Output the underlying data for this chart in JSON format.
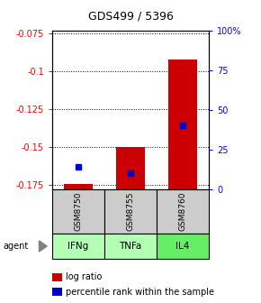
{
  "title": "GDS499 / 5396",
  "categories": [
    "IFNg",
    "TNFa",
    "IL4"
  ],
  "gsm_labels": [
    "GSM8750",
    "GSM8755",
    "GSM8760"
  ],
  "log_ratios": [
    -0.1745,
    -0.15,
    -0.092
  ],
  "log_ratio_base": -0.178,
  "percentile_ranks": [
    14,
    10,
    40
  ],
  "ylim_left": [
    -0.178,
    -0.073
  ],
  "yticks_left": [
    -0.175,
    -0.15,
    -0.125,
    -0.1,
    -0.075
  ],
  "yticks_right": [
    0,
    25,
    50,
    75,
    100
  ],
  "bar_color": "#cc0000",
  "dot_color": "#0000cc",
  "agent_colors": [
    "#b3ffb3",
    "#b3ffb3",
    "#66ee66"
  ],
  "gsm_bg": "#cccccc",
  "agent_label": "agent",
  "legend_items": [
    "log ratio",
    "percentile rank within the sample"
  ]
}
